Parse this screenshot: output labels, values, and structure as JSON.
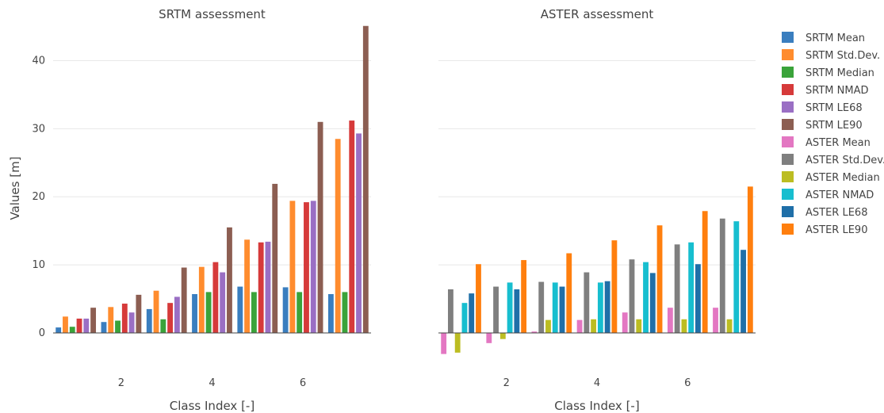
{
  "chart_data": {
    "type": "bar",
    "ylabel": "Values [m]",
    "xlabel": "Class Index [-]",
    "ylim": [
      -3.5,
      46
    ],
    "xlim": [
      0.5,
      7.5
    ],
    "yticks": [
      0,
      10,
      20,
      30,
      40
    ],
    "xticks": [
      2,
      4,
      6
    ],
    "grid": true,
    "legend_position": "right",
    "classes": [
      1,
      2,
      3,
      4,
      5,
      6,
      7
    ],
    "panels": [
      {
        "title": "SRTM assessment",
        "series": [
          {
            "name": "SRTM Mean",
            "color": "#3a7ebf",
            "values": [
              0.8,
              1.6,
              3.5,
              5.7,
              6.8,
              6.7,
              5.7
            ]
          },
          {
            "name": "SRTM Std.Dev.",
            "color": "#ff8c2e",
            "values": [
              2.4,
              3.8,
              6.2,
              9.7,
              13.7,
              19.4,
              28.5
            ]
          },
          {
            "name": "SRTM Median",
            "color": "#3aa33a",
            "values": [
              0.9,
              1.8,
              2.0,
              6.0,
              6.0,
              6.0,
              6.0
            ]
          },
          {
            "name": "SRTM NMAD",
            "color": "#d63a3a",
            "values": [
              2.1,
              4.3,
              4.4,
              10.4,
              13.3,
              19.2,
              31.2
            ]
          },
          {
            "name": "SRTM LE68",
            "color": "#9a6fc4",
            "values": [
              2.1,
              3.0,
              5.3,
              8.9,
              13.4,
              19.4,
              29.3
            ]
          },
          {
            "name": "SRTM LE90",
            "color": "#8c5e52",
            "values": [
              3.7,
              5.6,
              9.6,
              15.5,
              21.9,
              31.0,
              45.1
            ]
          }
        ]
      },
      {
        "title": "ASTER assessment",
        "series": [
          {
            "name": "ASTER Mean",
            "color": "#e377c2",
            "values": [
              -3.1,
              -1.5,
              0.2,
              1.9,
              3.0,
              3.7,
              3.7
            ]
          },
          {
            "name": "ASTER Std.Dev.",
            "color": "#7f7f7f",
            "values": [
              6.4,
              6.8,
              7.5,
              8.9,
              10.8,
              13.0,
              16.8
            ]
          },
          {
            "name": "ASTER Median",
            "color": "#bcbd22",
            "values": [
              -2.9,
              -0.9,
              1.9,
              2.0,
              2.0,
              2.0,
              2.0
            ]
          },
          {
            "name": "ASTER NMAD",
            "color": "#17becf",
            "values": [
              4.4,
              7.4,
              7.4,
              7.4,
              10.4,
              13.3,
              16.4
            ]
          },
          {
            "name": "ASTER LE68",
            "color": "#1f6fa8",
            "values": [
              5.8,
              6.4,
              6.8,
              7.6,
              8.8,
              10.1,
              12.2
            ]
          },
          {
            "name": "ASTER LE90",
            "color": "#ff7f0e",
            "values": [
              10.1,
              10.7,
              11.7,
              13.6,
              15.8,
              17.9,
              21.5
            ]
          }
        ]
      }
    ]
  }
}
